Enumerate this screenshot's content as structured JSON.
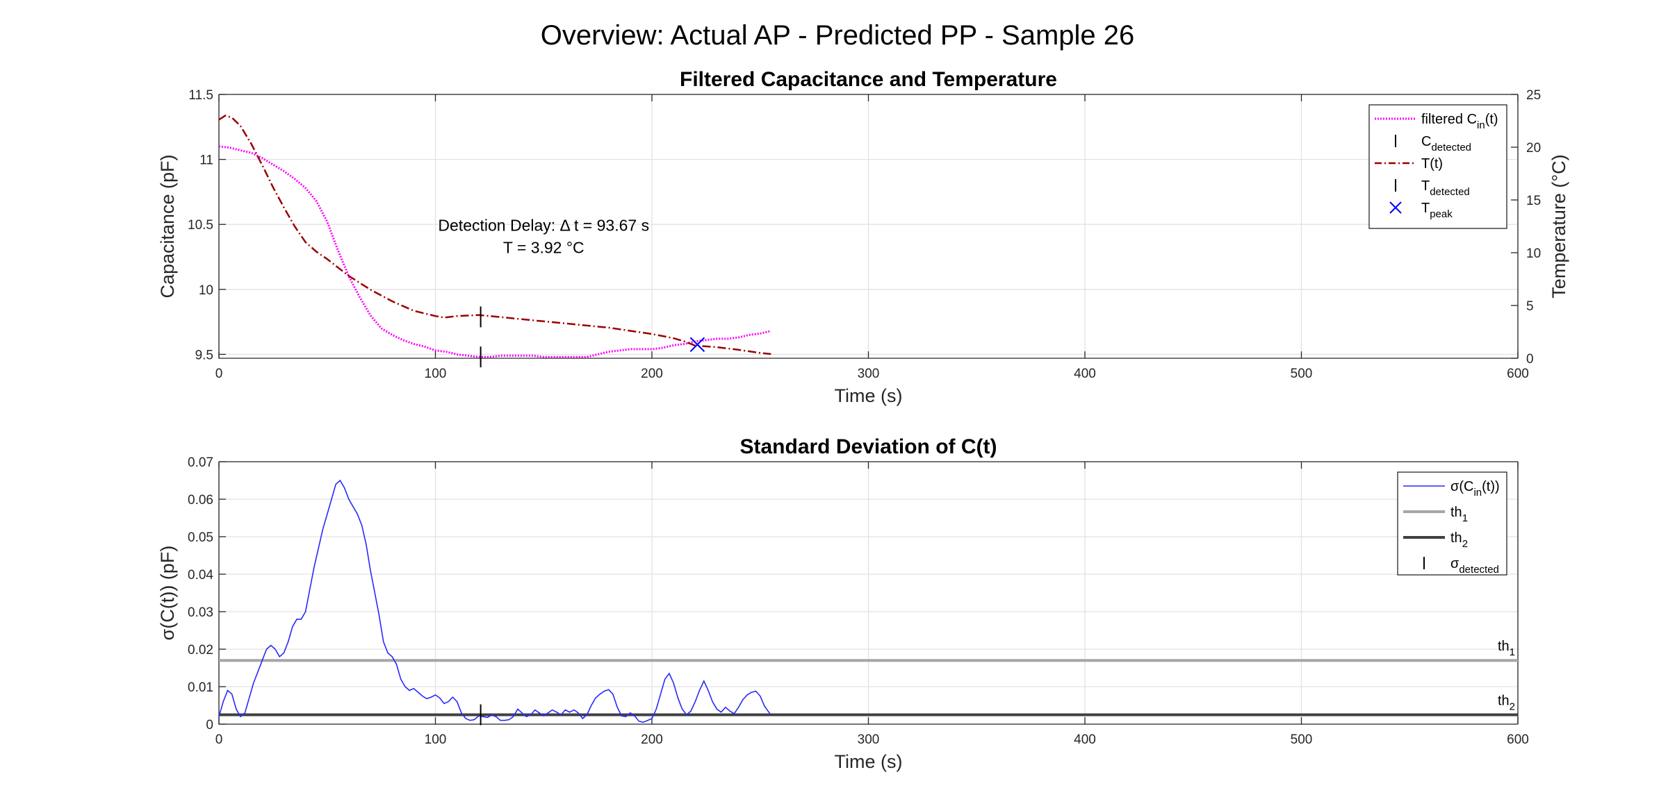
{
  "figure": {
    "suptitle": "Overview: Actual AP - Predicted PP - Sample 26"
  },
  "colors": {
    "capacitance": "#ff00ff",
    "temperature": "#990000",
    "sigma": "#2828ff",
    "th1": "#a6a6a6",
    "th2": "#404040",
    "marker": "#000000",
    "peak": "#0000ff"
  },
  "chart_data": [
    {
      "type": "line",
      "title": "Filtered Capacitance and Temperature",
      "xlabel": "Time (s)",
      "ylabel": "Capacitance (pF)",
      "y2label": "Temperature (°C)",
      "xlim": [
        0,
        600
      ],
      "ylim": [
        9.47,
        11.5
      ],
      "y2lim": [
        0,
        25
      ],
      "xticks": [
        0,
        100,
        200,
        300,
        400,
        500,
        600
      ],
      "yticks": [
        9.5,
        10,
        10.5,
        11,
        11.5
      ],
      "y2ticks": [
        0,
        5,
        10,
        15,
        20,
        25
      ],
      "grid": true,
      "legend_position": "top-right",
      "legend": [
        {
          "main": "filtered C",
          "sub": "in",
          "suffix": "(t)",
          "symbol": "dotted-line",
          "color": "capacitance"
        },
        {
          "main": "C",
          "sub": "detected",
          "suffix": "",
          "symbol": "bar",
          "color": "marker"
        },
        {
          "main": "T(t)",
          "sub": "",
          "suffix": "",
          "symbol": "dashdot-line",
          "color": "temperature"
        },
        {
          "main": "T",
          "sub": "detected",
          "suffix": "",
          "symbol": "bar",
          "color": "marker"
        },
        {
          "main": "T",
          "sub": "peak",
          "suffix": "",
          "symbol": "x",
          "color": "peak"
        }
      ],
      "annotation": {
        "x": 150,
        "y": 10.45,
        "lines": [
          "Detection Delay: Δ t = 93.67 s",
          "T = 3.92 °C"
        ]
      },
      "series": [
        {
          "name": "filtered Cin(t)",
          "axis": "left",
          "style": "dotted",
          "x": [
            0,
            5,
            10,
            15,
            20,
            25,
            30,
            35,
            40,
            45,
            50,
            55,
            60,
            65,
            70,
            75,
            80,
            85,
            90,
            95,
            100,
            105,
            110,
            115,
            120,
            125,
            130,
            135,
            140,
            145,
            150,
            155,
            160,
            165,
            170,
            175,
            180,
            185,
            190,
            195,
            200,
            205,
            210,
            215,
            220,
            225,
            230,
            235,
            240,
            245,
            250,
            255
          ],
          "values": [
            11.1,
            11.09,
            11.07,
            11.05,
            11.01,
            10.96,
            10.91,
            10.85,
            10.78,
            10.68,
            10.52,
            10.3,
            10.1,
            9.94,
            9.8,
            9.7,
            9.65,
            9.61,
            9.58,
            9.56,
            9.53,
            9.52,
            9.5,
            9.49,
            9.48,
            9.48,
            9.49,
            9.49,
            9.49,
            9.49,
            9.48,
            9.48,
            9.48,
            9.48,
            9.48,
            9.5,
            9.52,
            9.53,
            9.54,
            9.54,
            9.54,
            9.55,
            9.57,
            9.58,
            9.6,
            9.61,
            9.62,
            9.62,
            9.63,
            9.65,
            9.66,
            9.68
          ]
        },
        {
          "name": "T(t)",
          "axis": "right",
          "style": "dashdot",
          "x": [
            0,
            3,
            6,
            10,
            15,
            20,
            25,
            30,
            35,
            40,
            45,
            50,
            55,
            60,
            70,
            80,
            90,
            100,
            104,
            110,
            120,
            130,
            140,
            150,
            160,
            170,
            180,
            190,
            200,
            210,
            215,
            220,
            230,
            240,
            250,
            255
          ],
          "values": [
            22.6,
            23,
            22.8,
            22,
            20.3,
            18.3,
            16.2,
            14.3,
            12.5,
            11,
            10.1,
            9.4,
            8.6,
            7.8,
            6.5,
            5.4,
            4.5,
            4.0,
            3.85,
            4.0,
            4.1,
            3.9,
            3.7,
            3.5,
            3.3,
            3.1,
            2.9,
            2.6,
            2.3,
            1.9,
            1.6,
            1.2,
            1.05,
            0.8,
            0.5,
            0.4
          ]
        }
      ],
      "markers": {
        "c_detected": {
          "x": 120.9,
          "y": 9.48
        },
        "t_detected": {
          "x": 120.9,
          "y2": 3.92
        },
        "t_peak": {
          "x": 221,
          "y2": 1.3
        }
      }
    },
    {
      "type": "line",
      "title": "Standard Deviation of C(t)",
      "xlabel": "Time (s)",
      "ylabel": "σ(C(t)) (pF)",
      "xlim": [
        0,
        600
      ],
      "ylim": [
        0,
        0.07
      ],
      "xticks": [
        0,
        100,
        200,
        300,
        400,
        500,
        600
      ],
      "yticks": [
        0,
        0.01,
        0.02,
        0.03,
        0.04,
        0.05,
        0.06,
        0.07
      ],
      "grid": true,
      "legend_position": "top-right",
      "legend": [
        {
          "main": "σ(C",
          "sub": "in",
          "suffix": "(t))",
          "symbol": "thin-line",
          "color": "sigma"
        },
        {
          "main": "th",
          "sub": "1",
          "suffix": "",
          "symbol": "thick-line",
          "color": "th1"
        },
        {
          "main": "th",
          "sub": "2",
          "suffix": "",
          "symbol": "thick-line",
          "color": "th2"
        },
        {
          "main": "σ",
          "sub": "detected",
          "suffix": "",
          "symbol": "bar",
          "color": "marker"
        }
      ],
      "thresholds": [
        {
          "name": "th1",
          "label_main": "th",
          "label_sub": "1",
          "value": 0.017,
          "color": "th1"
        },
        {
          "name": "th2",
          "label_main": "th",
          "label_sub": "2",
          "value": 0.0025,
          "color": "th2"
        }
      ],
      "series": [
        {
          "name": "σ(Cin(t))",
          "x": [
            0,
            2,
            4,
            6,
            8,
            10,
            12,
            14,
            16,
            18,
            20,
            22,
            24,
            26,
            28,
            30,
            32,
            34,
            36,
            38,
            40,
            42,
            44,
            46,
            48,
            50,
            52,
            54,
            56,
            58,
            60,
            62,
            64,
            66,
            68,
            70,
            72,
            74,
            76,
            78,
            80,
            82,
            84,
            86,
            88,
            90,
            92,
            94,
            96,
            98,
            100,
            102,
            104,
            106,
            108,
            110,
            112,
            114,
            116,
            118,
            120,
            122,
            124,
            126,
            128,
            130,
            132,
            134,
            136,
            138,
            140,
            142,
            144,
            146,
            148,
            150,
            152,
            154,
            156,
            158,
            160,
            162,
            164,
            166,
            168,
            170,
            172,
            174,
            176,
            178,
            180,
            182,
            184,
            186,
            188,
            190,
            192,
            194,
            196,
            198,
            200,
            202,
            204,
            206,
            208,
            210,
            212,
            214,
            216,
            218,
            220,
            222,
            224,
            226,
            228,
            230,
            232,
            234,
            236,
            238,
            240,
            242,
            244,
            246,
            248,
            250,
            252,
            254,
            255
          ],
          "values": [
            0.002,
            0.006,
            0.009,
            0.008,
            0.004,
            0.002,
            0.003,
            0.007,
            0.011,
            0.014,
            0.017,
            0.02,
            0.021,
            0.02,
            0.018,
            0.019,
            0.022,
            0.026,
            0.028,
            0.028,
            0.03,
            0.036,
            0.042,
            0.047,
            0.052,
            0.056,
            0.06,
            0.064,
            0.065,
            0.063,
            0.06,
            0.058,
            0.056,
            0.053,
            0.048,
            0.041,
            0.035,
            0.029,
            0.022,
            0.019,
            0.018,
            0.016,
            0.012,
            0.01,
            0.009,
            0.0095,
            0.0085,
            0.0075,
            0.0068,
            0.0072,
            0.0078,
            0.007,
            0.0055,
            0.006,
            0.0072,
            0.006,
            0.003,
            0.0015,
            0.001,
            0.0012,
            0.0022,
            0.002,
            0.0018,
            0.0024,
            0.002,
            0.001,
            0.001,
            0.0012,
            0.002,
            0.004,
            0.003,
            0.002,
            0.0025,
            0.0038,
            0.003,
            0.0022,
            0.003,
            0.0038,
            0.0032,
            0.0025,
            0.0038,
            0.0032,
            0.0038,
            0.003,
            0.0015,
            0.0025,
            0.005,
            0.007,
            0.008,
            0.0088,
            0.0092,
            0.008,
            0.0045,
            0.0022,
            0.002,
            0.003,
            0.0022,
            0.0008,
            0.0005,
            0.001,
            0.0015,
            0.004,
            0.008,
            0.012,
            0.0135,
            0.011,
            0.007,
            0.004,
            0.0025,
            0.0035,
            0.006,
            0.009,
            0.0115,
            0.009,
            0.006,
            0.004,
            0.0032,
            0.0045,
            0.0035,
            0.0028,
            0.0045,
            0.0065,
            0.0078,
            0.0085,
            0.0088,
            0.0075,
            0.0048,
            0.0032,
            0.0025
          ]
        }
      ],
      "markers": {
        "sigma_detected": {
          "x": 120.9,
          "y": 0.0025
        }
      }
    }
  ]
}
